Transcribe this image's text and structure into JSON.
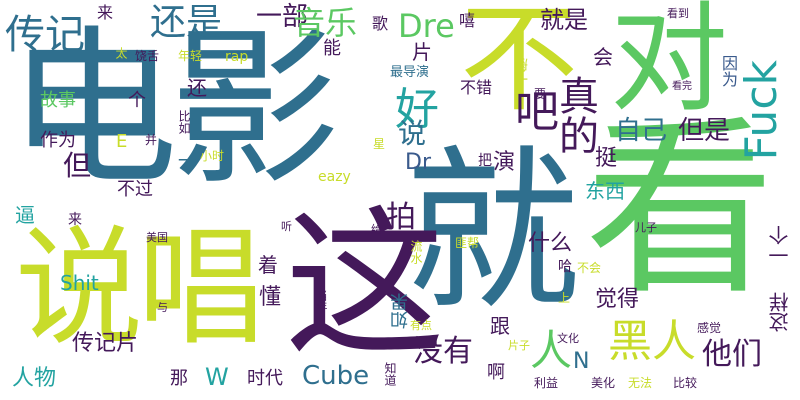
{
  "palette": {
    "purple": "#44195a",
    "teal": "#2f6f8e",
    "blue": "#3a5a8c",
    "green": "#5bc862",
    "lime": "#c8dc2a",
    "olive": "#9ecf3a",
    "cyan": "#23a3a1"
  },
  "words": [
    {
      "text": "电影"
    },
    {
      "text": "看"
    },
    {
      "text": "就"
    },
    {
      "text": "这"
    },
    {
      "text": "说唱"
    },
    {
      "text": "不"
    },
    {
      "text": "对"
    },
    {
      "text": "还是"
    },
    {
      "text": "一部"
    },
    {
      "text": "音乐"
    },
    {
      "text": "传记"
    },
    {
      "text": "Dre"
    },
    {
      "text": "就是"
    },
    {
      "text": "Fuck"
    },
    {
      "text": "好"
    },
    {
      "text": "吧"
    },
    {
      "text": "说"
    },
    {
      "text": "真的"
    },
    {
      "text": "自己"
    },
    {
      "text": "但是"
    },
    {
      "text": "人"
    },
    {
      "text": "黑人"
    },
    {
      "text": "他们"
    },
    {
      "text": "没有"
    },
    {
      "text": "传记片"
    },
    {
      "text": "Cube"
    },
    {
      "text": "拍"
    },
    {
      "text": "故事"
    },
    {
      "text": "个"
    },
    {
      "text": "还"
    },
    {
      "text": "作为"
    },
    {
      "text": "E"
    },
    {
      "text": "但"
    },
    {
      "text": "不过"
    },
    {
      "text": "Dr"
    },
    {
      "text": "演"
    },
    {
      "text": "挺"
    },
    {
      "text": "东西"
    },
    {
      "text": "什么"
    },
    {
      "text": "觉得"
    },
    {
      "text": "这样"
    },
    {
      "text": "一个"
    },
    {
      "text": "跟"
    },
    {
      "text": "如果"
    },
    {
      "text": "懂"
    },
    {
      "text": "着"
    },
    {
      "text": "人物"
    },
    {
      "text": "W"
    },
    {
      "text": "时代"
    },
    {
      "text": "那"
    },
    {
      "text": "N"
    },
    {
      "text": "啊"
    },
    {
      "text": "Shit"
    },
    {
      "text": "来"
    },
    {
      "text": "歌"
    },
    {
      "text": "嘻"
    },
    {
      "text": "片"
    },
    {
      "text": "能"
    },
    {
      "text": "会"
    },
    {
      "text": "最导演"
    },
    {
      "text": "不错"
    },
    {
      "text": "因为"
    },
    {
      "text": "一般"
    },
    {
      "text": "要"
    },
    {
      "text": "看到"
    },
    {
      "text": "rap"
    },
    {
      "text": "年轻"
    },
    {
      "text": "饶舌"
    },
    {
      "text": "太"
    },
    {
      "text": "比如"
    },
    {
      "text": "看完"
    },
    {
      "text": "并"
    },
    {
      "text": "小时"
    },
    {
      "text": "星"
    },
    {
      "text": "把"
    },
    {
      "text": "eazy"
    },
    {
      "text": "逼"
    },
    {
      "text": "来"
    },
    {
      "text": "美国"
    },
    {
      "text": "听"
    },
    {
      "text": "给"
    },
    {
      "text": "流水"
    },
    {
      "text": "匪帮"
    },
    {
      "text": "儿子"
    },
    {
      "text": "哈"
    },
    {
      "text": "不会"
    },
    {
      "text": "上"
    },
    {
      "text": "与"
    },
    {
      "text": "当年"
    },
    {
      "text": "有点"
    },
    {
      "text": "片子"
    },
    {
      "text": "文化"
    },
    {
      "text": "感觉"
    },
    {
      "text": "知道"
    },
    {
      "text": "利益"
    },
    {
      "text": "美化"
    },
    {
      "text": "无法"
    },
    {
      "text": "比较"
    },
    {
      "text": "一"
    }
  ]
}
